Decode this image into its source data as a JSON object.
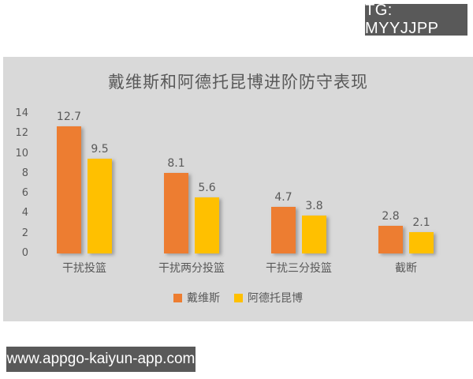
{
  "page": {
    "tg_badge": "TG: MYYJJPP",
    "url_badge": "www.appgo-kaiyun-app.com"
  },
  "colors": {
    "panel_background": "#D9D9D9",
    "text_gray": "#595959",
    "badge_background": "#595959",
    "badge_text": "#FFFFFF",
    "series_orange": "#ED7D31",
    "series_yellow": "#FFC000"
  },
  "chart_data": {
    "type": "bar",
    "title": "戴维斯和阿德托昆博进阶防守表现",
    "categories": [
      "干扰投篮",
      "干扰两分投篮",
      "干扰三分投篮",
      "截断"
    ],
    "series": [
      {
        "name": "戴维斯",
        "color": "#ED7D31",
        "values": [
          12.7,
          8.1,
          4.7,
          2.8
        ]
      },
      {
        "name": "阿德托昆博",
        "color": "#FFC000",
        "values": [
          9.5,
          5.6,
          3.8,
          2.1
        ]
      }
    ],
    "y_axis": {
      "min": 0,
      "max": 14,
      "tick_step": 2,
      "ticks": [
        0,
        2,
        4,
        6,
        8,
        10,
        12,
        14
      ]
    },
    "grid": false,
    "data_labels": true,
    "legend_position": "bottom"
  }
}
